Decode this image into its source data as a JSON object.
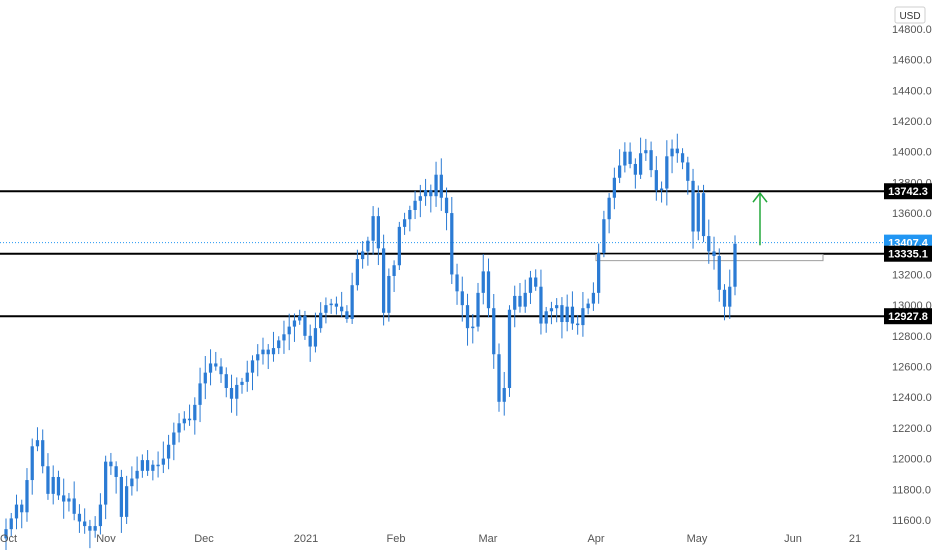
{
  "currency": "USD",
  "colors": {
    "up": "#2962ff",
    "down": "#1e6fd0",
    "candle": "#2b7bd4",
    "current_price": "#2196f3",
    "level_line": "#000000",
    "arrow": "#22a83a",
    "zone": "#9e9e9e",
    "axis_text": "#555555"
  },
  "chart_data": {
    "type": "candlestick",
    "title": "",
    "xlabel": "",
    "ylabel": "",
    "ylim": [
      11480,
      14850
    ],
    "x_axis_ticks": [
      "Oct",
      "Nov",
      "Dec",
      "2021",
      "Feb",
      "Mar",
      "Apr",
      "May",
      "Jun",
      "21"
    ],
    "y_axis_ticks": [
      "14800.0",
      "14600.0",
      "14400.0",
      "14200.0",
      "14000.0",
      "13800.0",
      "13600.0",
      "13400.0",
      "13200.0",
      "13000.0",
      "12800.0",
      "12600.0",
      "12400.0",
      "12200.0",
      "12000.0",
      "11800.0",
      "11600.0"
    ],
    "price_labels": [
      "13742.3",
      "13407.4",
      "13335.1",
      "12927.8"
    ],
    "current_price": 13407.4,
    "horizontal_levels": [
      13742.3,
      13335.1,
      12927.8
    ],
    "grid": false,
    "closes": [
      11540,
      11610,
      11700,
      11650,
      11860,
      12080,
      12120,
      11950,
      11770,
      11880,
      11760,
      11720,
      11740,
      11640,
      11590,
      11560,
      11530,
      11560,
      11700,
      11980,
      11950,
      11880,
      11620,
      11820,
      11870,
      11920,
      11990,
      11920,
      11960,
      11960,
      12000,
      12090,
      12170,
      12230,
      12260,
      12250,
      12350,
      12490,
      12560,
      12620,
      12600,
      12550,
      12460,
      12390,
      12480,
      12500,
      12560,
      12640,
      12680,
      12710,
      12680,
      12720,
      12770,
      12810,
      12860,
      12900,
      12930,
      12800,
      12730,
      12850,
      12950,
      13000,
      13010,
      12990,
      12960,
      12910,
      13130,
      13300,
      13350,
      13420,
      13580,
      13370,
      12950,
      13190,
      13260,
      13510,
      13560,
      13620,
      13680,
      13710,
      13750,
      13710,
      13850,
      13700,
      13600,
      13200,
      13090,
      13000,
      12850,
      12860,
      13080,
      13220,
      12980,
      12680,
      12370,
      12460,
      12970,
      13060,
      12990,
      13080,
      13180,
      13120,
      12880,
      12960,
      12980,
      13000,
      12890,
      12990,
      12880,
      12870,
      12980,
      13010,
      13080,
      13340,
      13560,
      13700,
      13830,
      13910,
      14000,
      13920,
      13850,
      13990,
      14010,
      13880,
      13750,
      13760,
      13970,
      14020,
      13990,
      13930,
      13810,
      13480,
      13730,
      13450,
      13350,
      13320,
      13100,
      12990,
      13120,
      13400
    ]
  }
}
